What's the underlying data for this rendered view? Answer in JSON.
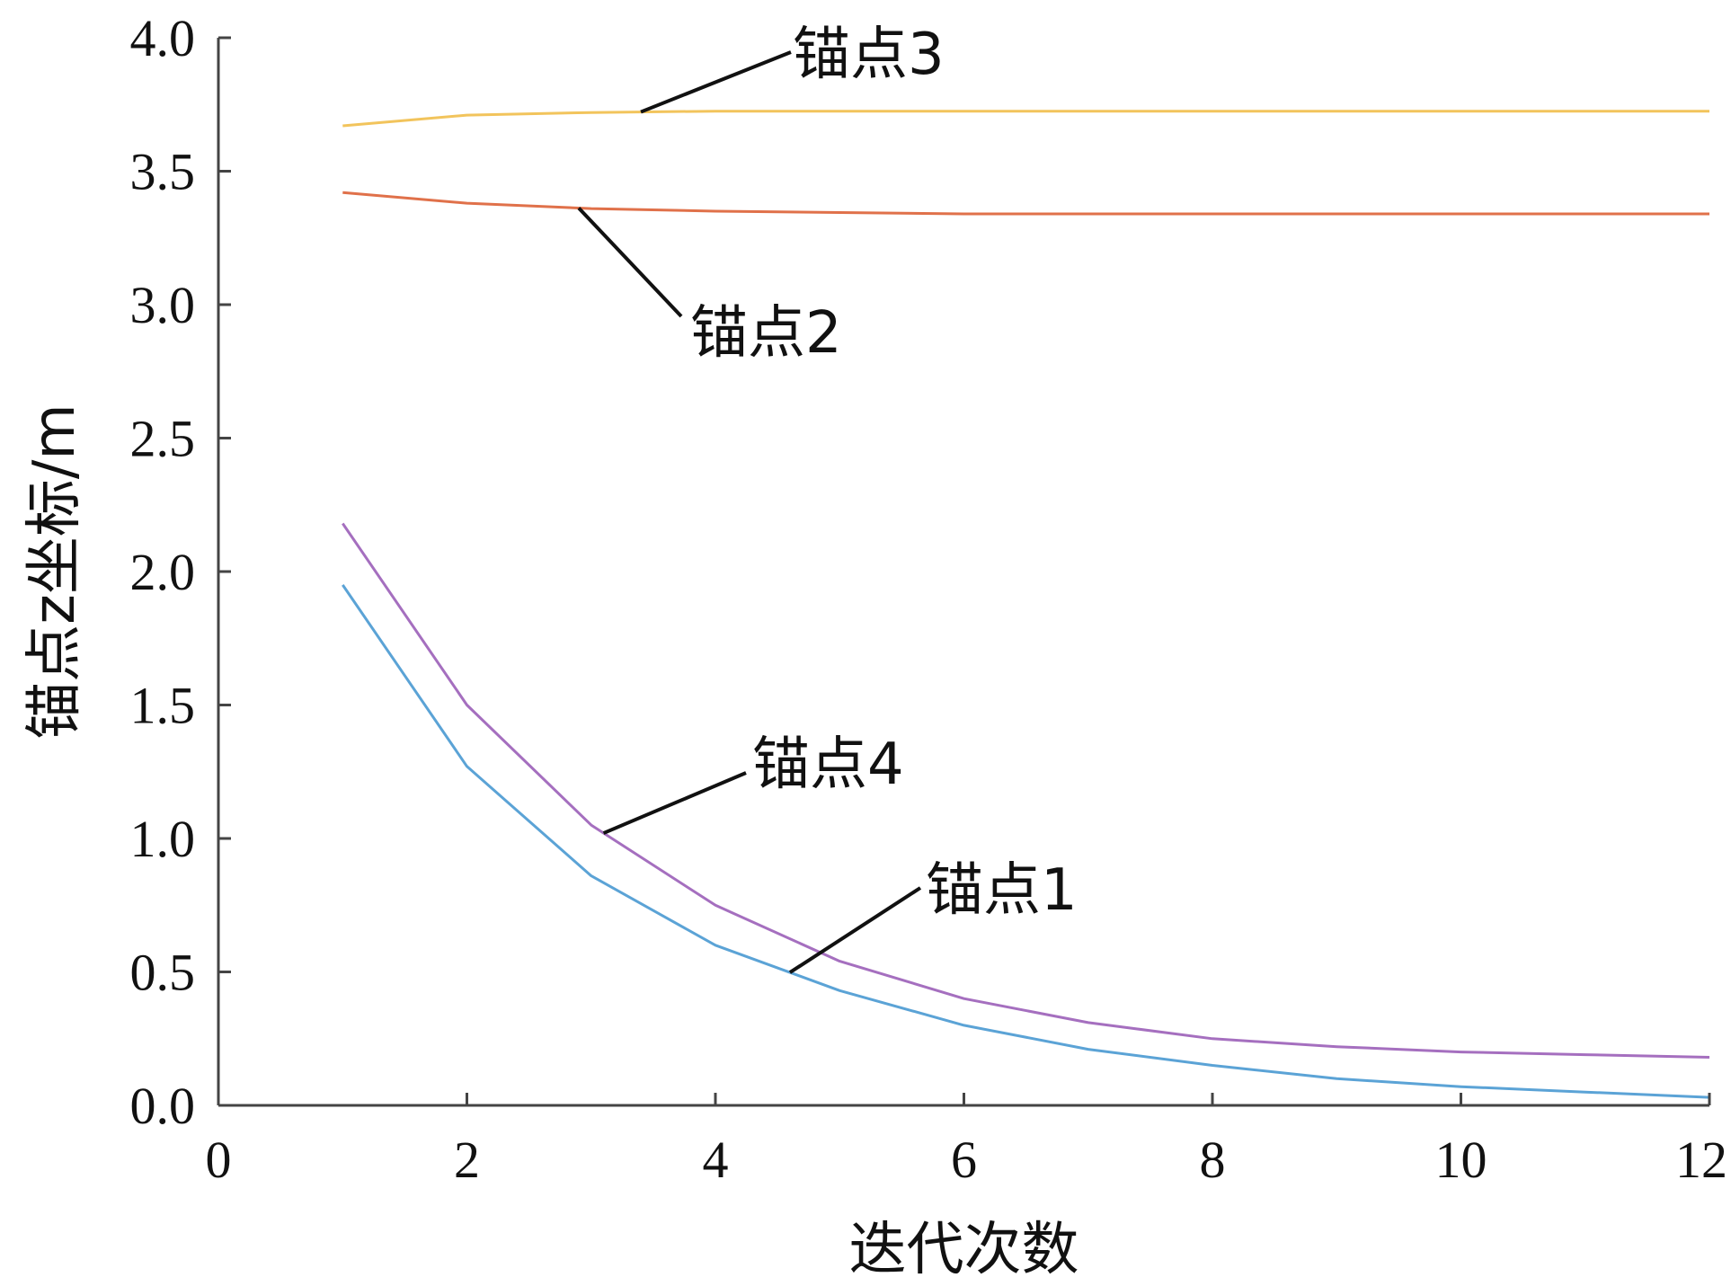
{
  "chart_data": {
    "type": "line",
    "xlabel": "迭代次数",
    "ylabel": "锚点z坐标/m",
    "xlim": [
      0,
      12
    ],
    "ylim": [
      0.0,
      4.0
    ],
    "xticks": [
      "0",
      "2",
      "4",
      "6",
      "8",
      "10",
      "12"
    ],
    "yticks": [
      "0.0",
      "0.5",
      "1.0",
      "1.5",
      "2.0",
      "2.5",
      "3.0",
      "3.5",
      "4.0"
    ],
    "x": [
      1,
      2,
      3,
      4,
      5,
      6,
      7,
      8,
      9,
      10,
      11,
      12
    ],
    "series": [
      {
        "name": "锚点1",
        "color": "#5ba3d6",
        "values": [
          1.95,
          1.27,
          0.86,
          0.6,
          0.43,
          0.3,
          0.21,
          0.15,
          0.1,
          0.07,
          0.05,
          0.03
        ]
      },
      {
        "name": "锚点2",
        "color": "#e0714a",
        "values": [
          3.42,
          3.38,
          3.36,
          3.35,
          3.345,
          3.34,
          3.34,
          3.34,
          3.34,
          3.34,
          3.34,
          3.34
        ]
      },
      {
        "name": "锚点3",
        "color": "#f2c45c",
        "values": [
          3.67,
          3.71,
          3.72,
          3.725,
          3.725,
          3.725,
          3.725,
          3.725,
          3.725,
          3.725,
          3.725,
          3.725
        ]
      },
      {
        "name": "锚点4",
        "color": "#a56fbf",
        "values": [
          2.18,
          1.5,
          1.05,
          0.75,
          0.54,
          0.4,
          0.31,
          0.25,
          0.22,
          0.2,
          0.19,
          0.18
        ]
      }
    ],
    "annotations": [
      {
        "series": "锚点3",
        "at_x": 3.4
      },
      {
        "series": "锚点2",
        "at_x": 2.9
      },
      {
        "series": "锚点4",
        "at_x": 3.1
      },
      {
        "series": "锚点1",
        "at_x": 4.6
      }
    ],
    "grid": false,
    "legend": "none"
  }
}
